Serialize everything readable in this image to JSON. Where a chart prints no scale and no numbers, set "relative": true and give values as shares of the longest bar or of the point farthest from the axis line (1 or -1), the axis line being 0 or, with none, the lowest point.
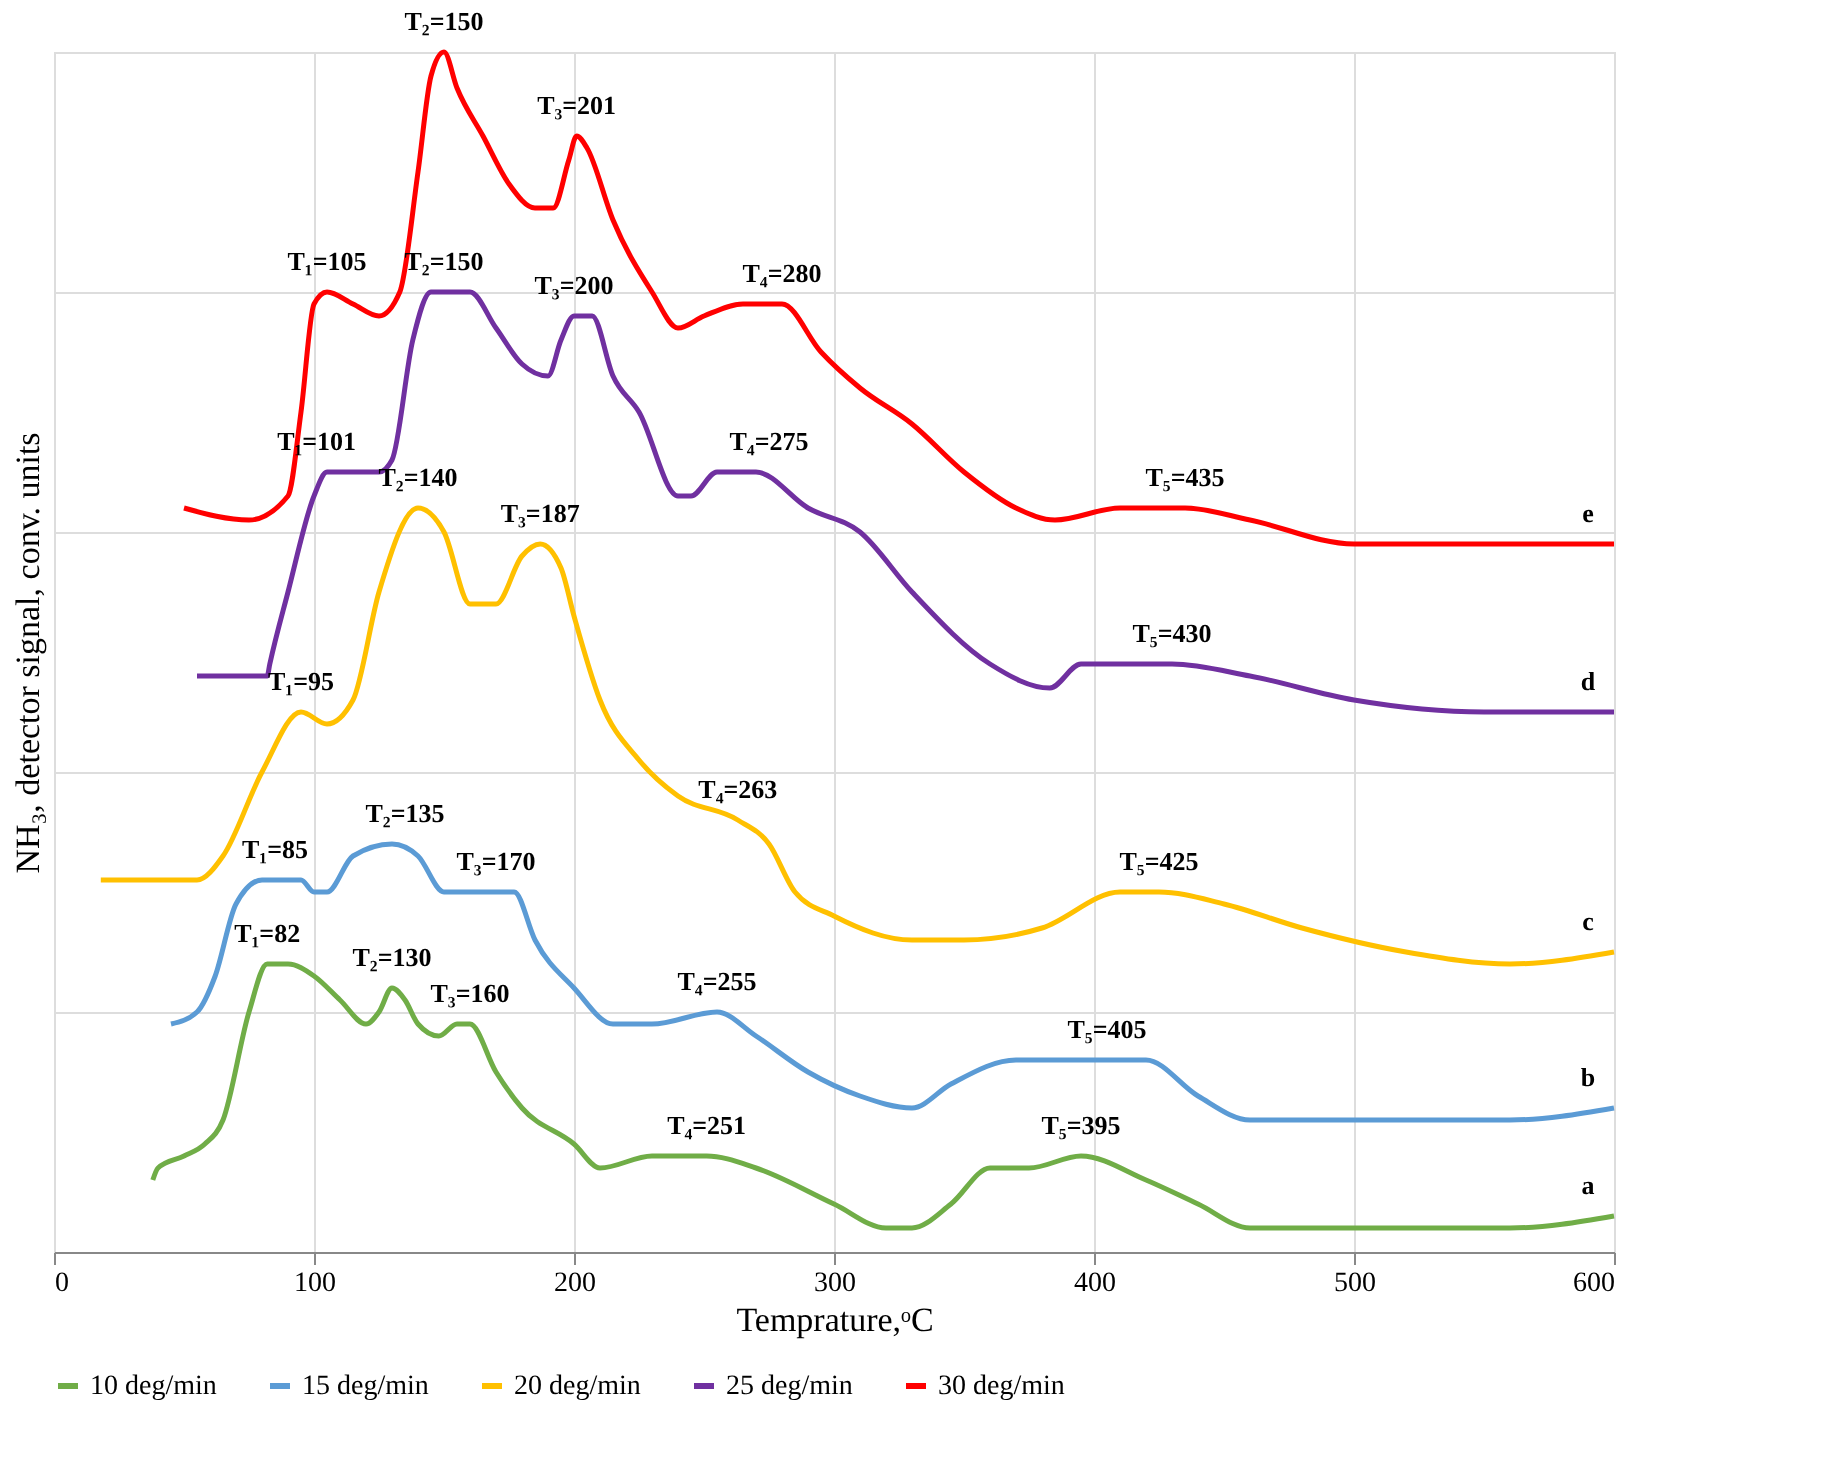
{
  "chart_data": {
    "type": "line",
    "relative": true,
    "xlabel": "Temprature,ᵒC",
    "ylabel": "NH₃, detector signal, conv. units",
    "xlim": [
      0,
      600
    ],
    "xticks": [
      0,
      100,
      200,
      300,
      400,
      500,
      600
    ],
    "grid": true,
    "legend": "bottom",
    "marker": "none",
    "line_style": "solid",
    "series": [
      {
        "name": "10 deg/min",
        "color": "#70ad47",
        "x": [
          38,
          40,
          50,
          58,
          65,
          75,
          82,
          90,
          100,
          110,
          120,
          125,
          130,
          135,
          140,
          148,
          155,
          160,
          170,
          180,
          200,
          210,
          230,
          251,
          270,
          300,
          320,
          330,
          345,
          360,
          375,
          395,
          420,
          440,
          460,
          490,
          520,
          560,
          600
        ],
        "values": [
          0.06,
          0.07,
          0.08,
          0.09,
          0.11,
          0.2,
          0.24,
          0.24,
          0.23,
          0.21,
          0.19,
          0.2,
          0.22,
          0.21,
          0.19,
          0.18,
          0.19,
          0.19,
          0.15,
          0.12,
          0.09,
          0.07,
          0.08,
          0.08,
          0.07,
          0.04,
          0.02,
          0.02,
          0.04,
          0.07,
          0.07,
          0.08,
          0.06,
          0.04,
          0.02,
          0.02,
          0.02,
          0.02,
          0.03
        ]
      },
      {
        "name": "15 deg/min",
        "color": "#5b9bd5",
        "x": [
          45,
          55,
          62,
          70,
          80,
          95,
          100,
          105,
          115,
          130,
          140,
          150,
          160,
          170,
          177,
          185,
          200,
          215,
          230,
          255,
          270,
          290,
          310,
          330,
          345,
          370,
          405,
          420,
          440,
          460,
          500,
          560,
          600
        ],
        "values": [
          0.19,
          0.2,
          0.23,
          0.29,
          0.31,
          0.31,
          0.3,
          0.3,
          0.33,
          0.34,
          0.33,
          0.3,
          0.3,
          0.3,
          0.3,
          0.26,
          0.22,
          0.19,
          0.19,
          0.2,
          0.18,
          0.15,
          0.13,
          0.12,
          0.14,
          0.16,
          0.16,
          0.16,
          0.13,
          0.11,
          0.11,
          0.11,
          0.12
        ]
      },
      {
        "name": "20 deg/min",
        "color": "#ffc000",
        "x": [
          18,
          45,
          55,
          65,
          80,
          95,
          105,
          115,
          125,
          140,
          150,
          160,
          170,
          180,
          187,
          195,
          200,
          210,
          225,
          240,
          263,
          275,
          285,
          300,
          330,
          350,
          380,
          410,
          425,
          450,
          480,
          520,
          560,
          600
        ],
        "values": [
          0.31,
          0.31,
          0.31,
          0.33,
          0.4,
          0.45,
          0.44,
          0.46,
          0.55,
          0.62,
          0.6,
          0.54,
          0.54,
          0.58,
          0.59,
          0.57,
          0.53,
          0.46,
          0.41,
          0.38,
          0.36,
          0.34,
          0.3,
          0.28,
          0.26,
          0.26,
          0.27,
          0.3,
          0.3,
          0.29,
          0.27,
          0.25,
          0.24,
          0.25
        ]
      },
      {
        "name": "25 deg/min",
        "color": "#7030a0",
        "x": [
          55,
          70,
          82,
          83,
          90,
          100,
          105,
          115,
          125,
          130,
          138,
          145,
          155,
          160,
          170,
          180,
          190,
          195,
          200,
          207,
          215,
          225,
          240,
          245,
          255,
          270,
          290,
          310,
          330,
          360,
          383,
          395,
          430,
          460,
          500,
          550,
          600
        ],
        "values": [
          0.48,
          0.48,
          0.48,
          0.49,
          0.55,
          0.63,
          0.65,
          0.65,
          0.65,
          0.66,
          0.76,
          0.8,
          0.8,
          0.8,
          0.77,
          0.74,
          0.73,
          0.76,
          0.78,
          0.78,
          0.73,
          0.7,
          0.63,
          0.63,
          0.65,
          0.65,
          0.62,
          0.6,
          0.55,
          0.49,
          0.47,
          0.49,
          0.49,
          0.48,
          0.46,
          0.45,
          0.45
        ]
      },
      {
        "name": "30 deg/min",
        "color": "#ff0000",
        "x": [
          50,
          75,
          90,
          95,
          100,
          105,
          115,
          125,
          133,
          140,
          145,
          150,
          155,
          165,
          175,
          185,
          192,
          198,
          201,
          205,
          215,
          230,
          240,
          250,
          265,
          280,
          295,
          310,
          330,
          350,
          370,
          385,
          410,
          435,
          460,
          500,
          550,
          600
        ],
        "values": [
          0.62,
          0.61,
          0.63,
          0.7,
          0.79,
          0.8,
          0.79,
          0.78,
          0.8,
          0.9,
          0.98,
          1.0,
          0.97,
          0.93,
          0.89,
          0.87,
          0.87,
          0.91,
          0.93,
          0.92,
          0.86,
          0.8,
          0.77,
          0.78,
          0.79,
          0.79,
          0.75,
          0.72,
          0.69,
          0.65,
          0.62,
          0.61,
          0.62,
          0.62,
          0.61,
          0.59,
          0.59,
          0.59
        ]
      }
    ],
    "annotations": [
      {
        "text": "T₁=82",
        "x": 82,
        "y": 0.24
      },
      {
        "text": "T₂=130",
        "x": 130,
        "y": 0.22
      },
      {
        "text": "T₃=160",
        "x": 160,
        "y": 0.19
      },
      {
        "text": "T₄=251",
        "x": 251,
        "y": 0.08
      },
      {
        "text": "T₅=395",
        "x": 395,
        "y": 0.08
      },
      {
        "text": "T₁=85",
        "x": 85,
        "y": 0.31
      },
      {
        "text": "T₂=135",
        "x": 135,
        "y": 0.34
      },
      {
        "text": "T₃=170",
        "x": 170,
        "y": 0.3
      },
      {
        "text": "T₄=255",
        "x": 255,
        "y": 0.2
      },
      {
        "text": "T₅=405",
        "x": 405,
        "y": 0.16
      },
      {
        "text": "T₁=95",
        "x": 95,
        "y": 0.45
      },
      {
        "text": "T₂=140",
        "x": 140,
        "y": 0.62
      },
      {
        "text": "T₃=187",
        "x": 187,
        "y": 0.59
      },
      {
        "text": "T₄=263",
        "x": 263,
        "y": 0.36
      },
      {
        "text": "T₅=425",
        "x": 425,
        "y": 0.3
      },
      {
        "text": "T₁=101",
        "x": 101,
        "y": 0.65
      },
      {
        "text": "T₂=150",
        "x": 150,
        "y": 0.8
      },
      {
        "text": "T₃=200",
        "x": 200,
        "y": 0.78
      },
      {
        "text": "T₄=275",
        "x": 275,
        "y": 0.65
      },
      {
        "text": "T₅=430",
        "x": 430,
        "y": 0.49
      },
      {
        "text": "T₁=105",
        "x": 105,
        "y": 0.8
      },
      {
        "text": "T₂=150",
        "x": 150,
        "y": 1.0
      },
      {
        "text": "T₃=201",
        "x": 201,
        "y": 0.93
      },
      {
        "text": "T₄=280",
        "x": 280,
        "y": 0.79
      },
      {
        "text": "T₅=435",
        "x": 435,
        "y": 0.62
      },
      {
        "text": "a",
        "x": 590,
        "y": 0.03
      },
      {
        "text": "b",
        "x": 590,
        "y": 0.12
      },
      {
        "text": "c",
        "x": 590,
        "y": 0.25
      },
      {
        "text": "d",
        "x": 590,
        "y": 0.45
      },
      {
        "text": "e",
        "x": 590,
        "y": 0.59
      }
    ]
  }
}
